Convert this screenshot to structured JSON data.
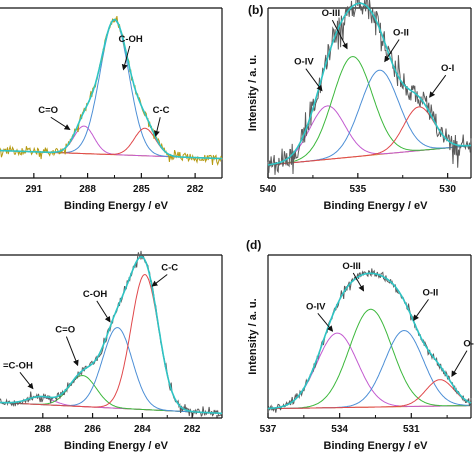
{
  "colors": {
    "raw": "#5a5a5a",
    "raw_a": "#b59a12",
    "envelope": "#2ec4c4",
    "axis": "#111111",
    "arrow": "#111111"
  },
  "chart_data": [
    {
      "panel": "a",
      "panel_letter": "",
      "type": "line",
      "xlabel": "Binding Energy / eV",
      "ylabel": "",
      "xlim": [
        293,
        280.5
      ],
      "xticks": [
        291,
        288,
        285,
        282
      ],
      "xtick_labels": [
        "291",
        "288",
        "285",
        "282"
      ],
      "ylim": [
        0,
        1.05
      ],
      "noise": 0.022,
      "raw_color": "#b59a12",
      "background": {
        "y_high": 0.17,
        "y_low": 0.12
      },
      "components": [
        {
          "name": "C=O",
          "center": 288.2,
          "height": 0.17,
          "fwhm": 1.3,
          "color": "#c35bd0",
          "label": "C=O",
          "label_x": 290.2,
          "label_y": 0.4,
          "arrow_to": [
            289.0,
            0.3
          ]
        },
        {
          "name": "C-OH",
          "center": 286.5,
          "height": 0.83,
          "fwhm": 1.9,
          "color": "#4d8fd6",
          "label": "C-OH",
          "label_x": 285.6,
          "label_y": 0.84,
          "arrow_to": [
            286.0,
            0.67
          ]
        },
        {
          "name": "C-C",
          "center": 284.8,
          "height": 0.17,
          "fwhm": 1.4,
          "color": "#e0484b",
          "label": "C-C",
          "label_x": 283.9,
          "label_y": 0.4,
          "arrow_to": [
            284.2,
            0.26
          ]
        }
      ]
    },
    {
      "panel": "b",
      "panel_letter": "(b)",
      "type": "line",
      "xlabel": "Binding Energy / eV",
      "ylabel": "Intensity / a. u.",
      "xlim": [
        540,
        528.7
      ],
      "xticks": [
        540,
        535,
        530
      ],
      "xtick_labels": [
        "540",
        "535",
        "530"
      ],
      "ylim": [
        0,
        1.05
      ],
      "noise": 0.07,
      "raw_color": "#5a5a5a",
      "background": {
        "y_high": 0.08,
        "y_low": 0.2
      },
      "components": [
        {
          "name": "O-IV",
          "center": 536.7,
          "height": 0.33,
          "fwhm": 2.3,
          "color": "#c35bd0",
          "label": "O-IV",
          "label_x": 538.0,
          "label_y": 0.7,
          "arrow_to": [
            537.0,
            0.54
          ]
        },
        {
          "name": "O-III",
          "center": 535.3,
          "height": 0.62,
          "fwhm": 2.6,
          "color": "#3cb83c",
          "label": "O-III",
          "label_x": 536.5,
          "label_y": 1.0,
          "arrow_to": [
            535.6,
            0.8
          ]
        },
        {
          "name": "O-II",
          "center": 533.8,
          "height": 0.52,
          "fwhm": 2.5,
          "color": "#4d8fd6",
          "label": "O-II",
          "label_x": 532.6,
          "label_y": 0.88,
          "arrow_to": [
            533.5,
            0.72
          ]
        },
        {
          "name": "O-I",
          "center": 531.6,
          "height": 0.27,
          "fwhm": 2.0,
          "color": "#e0484b",
          "label": "O-I",
          "label_x": 530.0,
          "label_y": 0.66,
          "arrow_to": [
            531.0,
            0.5
          ]
        }
      ]
    },
    {
      "panel": "c",
      "panel_letter": "",
      "type": "line",
      "xlabel": "Binding Energy / eV",
      "ylabel": "",
      "xlim": [
        289.8,
        280.8
      ],
      "xticks": [
        288,
        286,
        284,
        282
      ],
      "xtick_labels": [
        "288",
        "286",
        "284",
        "282"
      ],
      "ylim": [
        0,
        1.05
      ],
      "noise": 0.02,
      "raw_color": "#5a5a5a",
      "background": {
        "y_high": 0.1,
        "y_low": 0.03
      },
      "components": [
        {
          "name": "-C=C-OH",
          "center": 288.1,
          "height": 0.05,
          "fwhm": 1.2,
          "color": "#c35bd0",
          "label": "=C-OH",
          "label_x": 289.0,
          "label_y": 0.32,
          "arrow_to": [
            288.4,
            0.19
          ]
        },
        {
          "name": "C=O",
          "center": 286.4,
          "height": 0.2,
          "fwhm": 1.3,
          "color": "#3cb83c",
          "label": "C=O",
          "label_x": 287.1,
          "label_y": 0.55,
          "arrow_to": [
            286.6,
            0.34
          ]
        },
        {
          "name": "C-OH",
          "center": 285.0,
          "height": 0.52,
          "fwhm": 1.4,
          "color": "#4d8fd6",
          "label": "C-OH",
          "label_x": 285.9,
          "label_y": 0.78,
          "arrow_to": [
            285.3,
            0.62
          ]
        },
        {
          "name": "C-C",
          "center": 283.9,
          "height": 0.87,
          "fwhm": 1.3,
          "color": "#e0484b",
          "label": "C-C",
          "label_x": 282.9,
          "label_y": 0.95,
          "arrow_to": [
            283.6,
            0.85
          ]
        }
      ]
    },
    {
      "panel": "d",
      "panel_letter": "(d)",
      "type": "line",
      "xlabel": "Binding Energy / eV",
      "ylabel": "Intensity / a. u.",
      "xlim": [
        537,
        528.5
      ],
      "xticks": [
        537,
        534,
        531
      ],
      "xtick_labels": [
        "537",
        "534",
        "531"
      ],
      "ylim": [
        0,
        1.05
      ],
      "noise": 0.02,
      "raw_color": "#5a5a5a",
      "background": {
        "y_high": 0.06,
        "y_low": 0.08
      },
      "components": [
        {
          "name": "O-IV",
          "center": 534.1,
          "height": 0.48,
          "fwhm": 2.0,
          "color": "#c35bd0",
          "label": "O-IV",
          "label_x": 535.0,
          "label_y": 0.7,
          "arrow_to": [
            534.3,
            0.56
          ]
        },
        {
          "name": "O-III",
          "center": 532.7,
          "height": 0.63,
          "fwhm": 2.1,
          "color": "#3cb83c",
          "label": "O-III",
          "label_x": 533.5,
          "label_y": 0.96,
          "arrow_to": [
            533.0,
            0.82
          ]
        },
        {
          "name": "O-II",
          "center": 531.3,
          "height": 0.49,
          "fwhm": 1.9,
          "color": "#4d8fd6",
          "label": "O-II",
          "label_x": 530.2,
          "label_y": 0.79,
          "arrow_to": [
            530.9,
            0.63
          ]
        },
        {
          "name": "O-I",
          "center": 529.8,
          "height": 0.17,
          "fwhm": 1.4,
          "color": "#e0484b",
          "label": "O-",
          "label_x": 528.6,
          "label_y": 0.46,
          "arrow_to": [
            529.3,
            0.27
          ]
        }
      ]
    }
  ]
}
